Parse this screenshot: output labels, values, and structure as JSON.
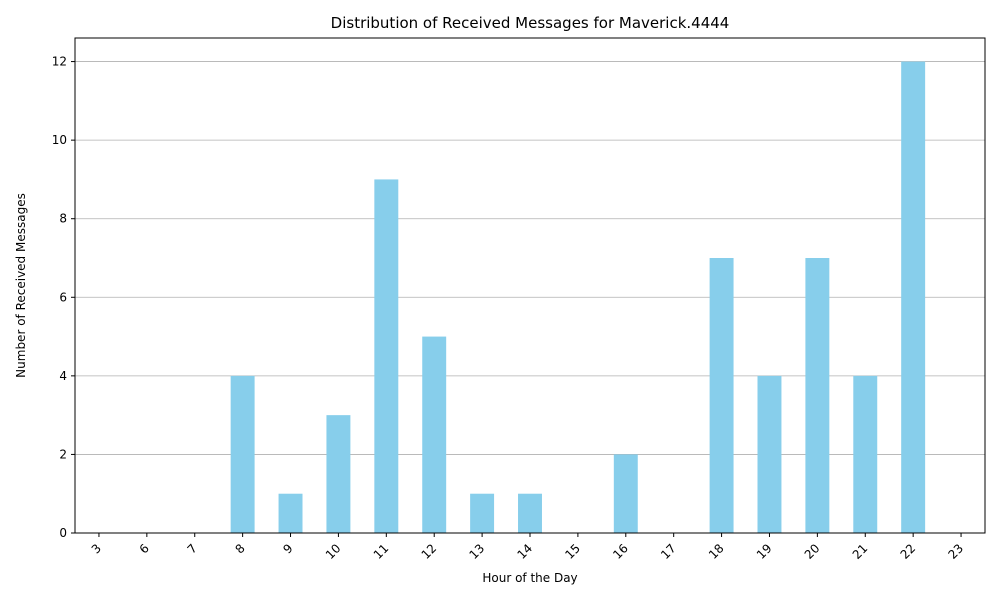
{
  "chart_data": {
    "type": "bar",
    "title": "Distribution of Received Messages for Maverick.4444",
    "xlabel": "Hour of the Day",
    "ylabel": "Number of Received Messages",
    "categories": [
      "3",
      "6",
      "7",
      "8",
      "9",
      "10",
      "11",
      "12",
      "13",
      "14",
      "15",
      "16",
      "17",
      "18",
      "19",
      "20",
      "21",
      "22",
      "23"
    ],
    "values": [
      0,
      0,
      0,
      4,
      1,
      3,
      9,
      5,
      1,
      1,
      0,
      2,
      0,
      7,
      4,
      7,
      4,
      12,
      0
    ],
    "ylim": [
      0,
      12.6
    ],
    "yticks": [
      0,
      2,
      4,
      6,
      8,
      10,
      12
    ],
    "grid": "y",
    "legend": "none",
    "bar_color": "#87ceeb",
    "x_tick_rotation": 45
  }
}
